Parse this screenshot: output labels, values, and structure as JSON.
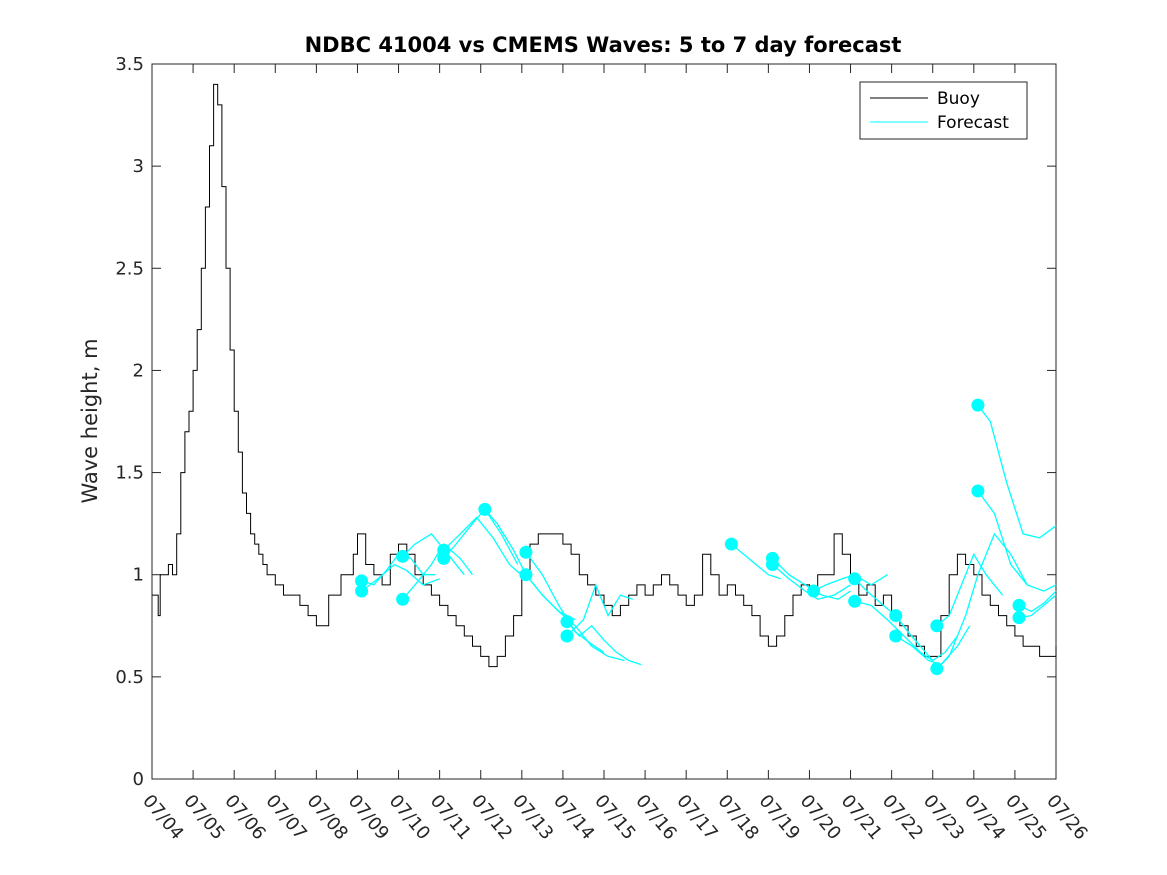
{
  "chart_data": {
    "type": "line",
    "title": "NDBC 41004 vs CMEMS Waves: 5 to 7 day forecast",
    "xlabel": "",
    "ylabel": "Wave height, m",
    "xlim": [
      "07/04",
      "07/26"
    ],
    "ylim": [
      0,
      3.5
    ],
    "x_ticks": [
      "07/04",
      "07/05",
      "07/06",
      "07/07",
      "07/08",
      "07/09",
      "07/10",
      "07/11",
      "07/12",
      "07/13",
      "07/14",
      "07/15",
      "07/16",
      "07/17",
      "07/18",
      "07/19",
      "07/20",
      "07/21",
      "07/22",
      "07/23",
      "07/24",
      "07/25",
      "07/26"
    ],
    "y_ticks": [
      0,
      0.5,
      1,
      1.5,
      2,
      2.5,
      3,
      3.5
    ],
    "grid": false,
    "legend_position": "top-right",
    "colors": {
      "buoy": "#000000",
      "forecast": "#00ffff"
    },
    "series": [
      {
        "name": "Buoy",
        "x_unit": "days since 07/04",
        "x": [
          0.0,
          0.1,
          0.15,
          0.2,
          0.3,
          0.4,
          0.5,
          0.6,
          0.7,
          0.8,
          0.9,
          1.0,
          1.1,
          1.2,
          1.3,
          1.4,
          1.5,
          1.6,
          1.7,
          1.8,
          1.9,
          2.0,
          2.1,
          2.2,
          2.3,
          2.4,
          2.5,
          2.6,
          2.7,
          2.8,
          2.9,
          3.0,
          3.2,
          3.4,
          3.6,
          3.8,
          4.0,
          4.3,
          4.6,
          4.9,
          5.0,
          5.2,
          5.4,
          5.6,
          5.8,
          6.0,
          6.2,
          6.4,
          6.6,
          6.8,
          7.0,
          7.2,
          7.4,
          7.6,
          7.8,
          8.0,
          8.2,
          8.4,
          8.6,
          8.8,
          9.0,
          9.2,
          9.4,
          9.6,
          9.8,
          10.0,
          10.2,
          10.4,
          10.6,
          10.8,
          11.0,
          11.2,
          11.4,
          11.6,
          11.8,
          12.0,
          12.2,
          12.4,
          12.6,
          12.8,
          13.0,
          13.2,
          13.4,
          13.6,
          13.8,
          14.0,
          14.2,
          14.4,
          14.6,
          14.8,
          15.0,
          15.2,
          15.4,
          15.6,
          15.8,
          16.0,
          16.2,
          16.4,
          16.6,
          16.8,
          17.0,
          17.2,
          17.4,
          17.6,
          17.8,
          18.0,
          18.2,
          18.4,
          18.6,
          18.8,
          19.0,
          19.2,
          19.4,
          19.6,
          19.8,
          20.0,
          20.2,
          20.4,
          20.6,
          20.8,
          21.0,
          21.2,
          21.4,
          21.6,
          21.8,
          22.0
        ],
        "y": [
          0.9,
          0.9,
          0.8,
          1.0,
          1.0,
          1.05,
          1.0,
          1.2,
          1.5,
          1.7,
          1.8,
          2.0,
          2.2,
          2.5,
          2.8,
          3.1,
          3.4,
          3.3,
          2.9,
          2.5,
          2.1,
          1.8,
          1.6,
          1.4,
          1.3,
          1.2,
          1.15,
          1.1,
          1.05,
          1.0,
          1.0,
          0.95,
          0.9,
          0.9,
          0.85,
          0.8,
          0.75,
          0.9,
          1.0,
          1.1,
          1.2,
          1.05,
          1.0,
          0.95,
          1.1,
          1.15,
          1.1,
          1.0,
          0.95,
          0.9,
          0.85,
          0.8,
          0.75,
          0.7,
          0.65,
          0.6,
          0.55,
          0.6,
          0.7,
          0.8,
          1.0,
          1.15,
          1.2,
          1.2,
          1.2,
          1.15,
          1.1,
          1.0,
          0.95,
          0.9,
          0.85,
          0.8,
          0.85,
          0.9,
          0.95,
          0.9,
          0.95,
          1.0,
          0.95,
          0.9,
          0.85,
          0.9,
          1.1,
          1.0,
          0.9,
          0.95,
          0.9,
          0.85,
          0.8,
          0.7,
          0.65,
          0.7,
          0.8,
          0.9,
          0.95,
          0.9,
          1.0,
          1.0,
          1.2,
          1.1,
          1.0,
          0.9,
          0.95,
          0.85,
          0.9,
          0.8,
          0.75,
          0.7,
          0.65,
          0.6,
          0.6,
          0.8,
          1.0,
          1.1,
          1.05,
          1.0,
          0.9,
          0.85,
          0.8,
          0.75,
          0.7,
          0.65,
          0.65,
          0.6,
          0.6,
          0.65
        ]
      },
      {
        "name": "Forecast",
        "x_unit": "days since 07/04",
        "segments": [
          {
            "x": [
              5.1,
              5.4,
              5.7,
              6.0,
              6.3,
              6.6,
              6.9
            ],
            "y": [
              0.97,
              0.95,
              1.02,
              1.1,
              1.08,
              1.0,
              1.0
            ]
          },
          {
            "x": [
              5.1,
              5.5,
              5.9,
              6.2,
              6.6,
              7.0
            ],
            "y": [
              0.92,
              0.98,
              1.05,
              1.02,
              0.95,
              0.98
            ]
          },
          {
            "x": [
              6.1,
              6.4,
              6.8,
              7.1,
              7.5,
              7.8
            ],
            "y": [
              0.88,
              0.95,
              1.05,
              1.15,
              1.08,
              1.0
            ]
          },
          {
            "x": [
              6.1,
              6.4,
              6.8,
              7.2,
              7.6
            ],
            "y": [
              1.09,
              1.15,
              1.2,
              1.1,
              1.0
            ]
          },
          {
            "x": [
              7.1,
              7.4,
              7.8,
              8.1,
              8.5,
              8.9
            ],
            "y": [
              1.08,
              1.15,
              1.25,
              1.32,
              1.2,
              1.05
            ]
          },
          {
            "x": [
              7.1,
              7.5,
              7.9,
              8.3,
              8.7,
              9.1
            ],
            "y": [
              1.12,
              1.2,
              1.28,
              1.18,
              1.05,
              0.98
            ]
          },
          {
            "x": [
              8.1,
              8.4,
              8.8,
              9.1,
              9.5,
              9.9,
              10.3
            ],
            "y": [
              1.32,
              1.25,
              1.12,
              1.0,
              0.9,
              0.82,
              0.78
            ]
          },
          {
            "x": [
              9.1,
              9.5,
              9.9,
              10.3,
              10.7,
              11.0
            ],
            "y": [
              1.11,
              1.0,
              0.85,
              0.72,
              0.66,
              0.62
            ]
          },
          {
            "x": [
              9.1,
              9.5,
              9.9,
              10.3,
              10.7,
              11.1,
              11.5
            ],
            "y": [
              1.0,
              0.9,
              0.82,
              0.75,
              0.65,
              0.6,
              0.58
            ]
          },
          {
            "x": [
              10.1,
              10.4,
              10.7,
              11.0,
              11.3,
              11.6,
              11.9
            ],
            "y": [
              0.77,
              0.7,
              0.75,
              0.68,
              0.62,
              0.58,
              0.56
            ]
          },
          {
            "x": [
              10.1,
              10.5,
              10.8,
              11.1,
              11.4,
              11.7
            ],
            "y": [
              0.7,
              0.78,
              0.95,
              0.8,
              0.9,
              0.88
            ]
          },
          {
            "x": [
              14.1,
              14.4,
              14.7,
              15.0,
              15.3
            ],
            "y": [
              1.15,
              1.1,
              1.05,
              1.0,
              0.98
            ]
          },
          {
            "x": [
              15.1,
              15.5,
              15.9,
              16.3,
              16.7,
              17.0
            ],
            "y": [
              1.08,
              1.0,
              0.95,
              0.9,
              0.88,
              0.92
            ]
          },
          {
            "x": [
              15.1,
              15.5,
              15.9,
              16.2,
              16.6,
              17.0
            ],
            "y": [
              1.05,
              0.98,
              0.92,
              0.88,
              0.9,
              0.95
            ]
          },
          {
            "x": [
              16.1,
              16.4,
              16.8,
              17.1,
              17.5,
              17.9
            ],
            "y": [
              0.92,
              0.95,
              0.98,
              1.0,
              0.95,
              1.0
            ]
          },
          {
            "x": [
              17.1,
              17.4,
              17.8,
              18.1,
              18.4,
              18.7
            ],
            "y": [
              0.98,
              0.92,
              0.85,
              0.8,
              0.72,
              0.65
            ]
          },
          {
            "x": [
              17.1,
              17.5,
              17.9,
              18.3,
              18.7,
              19.0
            ],
            "y": [
              0.87,
              0.85,
              0.78,
              0.7,
              0.62,
              0.58
            ]
          },
          {
            "x": [
              18.1,
              18.4,
              18.7,
              19.0,
              19.3,
              19.6
            ],
            "y": [
              0.8,
              0.72,
              0.65,
              0.58,
              0.62,
              0.7
            ]
          },
          {
            "x": [
              18.1,
              18.5,
              18.9,
              19.2,
              19.6,
              19.9
            ],
            "y": [
              0.7,
              0.65,
              0.58,
              0.56,
              0.65,
              0.75
            ]
          },
          {
            "x": [
              19.1,
              19.4,
              19.7,
              20.0,
              20.3,
              20.7
            ],
            "y": [
              0.75,
              0.8,
              0.95,
              1.1,
              1.0,
              0.9
            ]
          },
          {
            "x": [
              19.1,
              19.4,
              19.8,
              20.1,
              20.5,
              20.9,
              21.3
            ],
            "y": [
              0.54,
              0.6,
              0.8,
              1.0,
              1.2,
              1.1,
              0.95
            ]
          },
          {
            "x": [
              20.1,
              20.4,
              20.8,
              21.2,
              21.6,
              22.0
            ],
            "y": [
              1.83,
              1.75,
              1.45,
              1.2,
              1.18,
              1.24
            ]
          },
          {
            "x": [
              20.1,
              20.5,
              20.9,
              21.3,
              21.7,
              22.0
            ],
            "y": [
              1.41,
              1.3,
              1.05,
              0.95,
              0.92,
              0.95
            ]
          },
          {
            "x": [
              21.1,
              21.4,
              21.7,
              22.0
            ],
            "y": [
              0.85,
              0.82,
              0.86,
              0.92
            ]
          },
          {
            "x": [
              21.1,
              21.4,
              21.7,
              22.0
            ],
            "y": [
              0.79,
              0.8,
              0.85,
              0.9
            ]
          }
        ],
        "markers": {
          "x": [
            5.1,
            5.1,
            6.1,
            6.1,
            7.1,
            7.1,
            8.1,
            9.1,
            9.1,
            10.1,
            10.1,
            14.1,
            15.1,
            15.1,
            16.1,
            17.1,
            17.1,
            18.1,
            18.1,
            19.1,
            19.1,
            20.1,
            20.1,
            21.1,
            21.1
          ],
          "y": [
            0.97,
            0.92,
            0.88,
            1.09,
            1.08,
            1.12,
            1.32,
            1.11,
            1.0,
            0.77,
            0.7,
            1.15,
            1.08,
            1.05,
            0.92,
            0.98,
            0.87,
            0.8,
            0.7,
            0.75,
            0.54,
            1.83,
            1.41,
            0.85,
            0.79
          ]
        }
      }
    ]
  }
}
